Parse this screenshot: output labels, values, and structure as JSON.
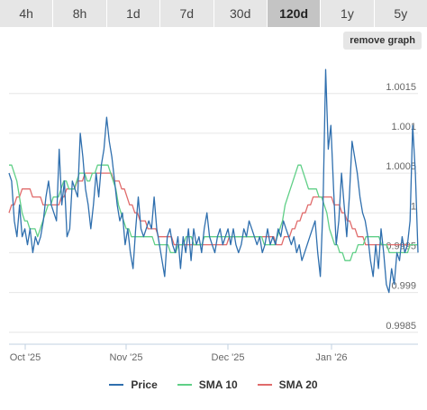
{
  "tabs": [
    {
      "label": "4h",
      "active": false
    },
    {
      "label": "8h",
      "active": false
    },
    {
      "label": "1d",
      "active": false
    },
    {
      "label": "7d",
      "active": false
    },
    {
      "label": "30d",
      "active": false
    },
    {
      "label": "120d",
      "active": true
    },
    {
      "label": "1y",
      "active": false
    },
    {
      "label": "5y",
      "active": false
    }
  ],
  "remove_graph_label": "remove graph",
  "colors": {
    "price": "#2f6fae",
    "sma10": "#5fcf86",
    "sma20": "#e06b6b",
    "grid": "#e6e6e6",
    "axis": "#c0d0e0"
  },
  "chart_data": {
    "type": "line",
    "title": "",
    "xlabel": "",
    "ylabel": "",
    "x_ticks": [
      "Oct '25",
      "Nov '25",
      "Dec '25",
      "Jan '26"
    ],
    "y_ticks": [
      "1.0015",
      "1.001",
      "1.0005",
      "1",
      "0.9995",
      "0.999",
      "0.9985"
    ],
    "ylim": [
      0.99835,
      1.00195
    ],
    "y_axis_position": "right",
    "grid": true,
    "legend_position": "bottom",
    "series": [
      {
        "name": "Price",
        "values": [
          1.0005,
          1.0004,
          0.9999,
          0.9997,
          1.0001,
          0.9997,
          0.9998,
          0.9996,
          0.9998,
          0.9995,
          0.9997,
          0.9996,
          0.9997,
          0.9999,
          1.0002,
          1.0004,
          1.0001,
          1.0,
          0.9999,
          1.0008,
          1.0001,
          1.0004,
          0.9997,
          0.9998,
          1.0004,
          1.0003,
          1.0002,
          1.001,
          1.0007,
          1.0003,
          1.0001,
          0.9998,
          1.0001,
          1.0005,
          1.0002,
          1.0006,
          1.0008,
          1.0012,
          1.0009,
          1.0007,
          1.0004,
          1.0001,
          0.9999,
          1.0,
          0.9996,
          0.9998,
          0.9995,
          0.9993,
          0.9998,
          1.0002,
          0.9998,
          0.9997,
          0.9998,
          0.9999,
          0.9998,
          1.0002,
          0.9998,
          0.9996,
          0.9994,
          0.9992,
          0.9997,
          0.9998,
          0.9996,
          0.9995,
          0.9997,
          0.9993,
          0.9997,
          0.9995,
          0.9998,
          0.9994,
          0.9998,
          0.9996,
          0.9997,
          0.9995,
          0.9998,
          1.0,
          0.9997,
          0.9996,
          0.9995,
          0.9997,
          0.9998,
          0.9996,
          0.9997,
          0.9998,
          0.9996,
          0.9998,
          0.9996,
          0.9995,
          0.9996,
          0.9998,
          0.9997,
          0.9999,
          0.9998,
          0.9997,
          0.9996,
          0.9997,
          0.9995,
          0.9996,
          0.9998,
          0.9996,
          0.9997,
          0.9996,
          0.9998,
          0.9997,
          0.9999,
          0.9998,
          0.9997,
          0.9996,
          0.9997,
          0.9995,
          0.9996,
          0.9994,
          0.9995,
          0.9996,
          0.9997,
          0.9998,
          0.9999,
          0.9995,
          0.9992,
          1.0001,
          1.0018,
          1.0008,
          1.0011,
          1.0003,
          0.9996,
          0.9999,
          1.0005,
          1.0001,
          0.9997,
          1.0002,
          1.0009,
          1.0007,
          1.0005,
          1.0002,
          1.0,
          0.9999,
          0.9997,
          0.9994,
          0.9992,
          0.9996,
          0.9993,
          0.9998,
          0.9995,
          0.9991,
          0.999,
          0.9993,
          0.9991,
          0.9995,
          0.9994,
          0.9997,
          0.9995,
          0.9996,
          0.9999,
          1.0011,
          1.0005,
          0.9995
        ]
      },
      {
        "name": "SMA 10",
        "values": [
          1.0006,
          1.0006,
          1.0005,
          1.0004,
          1.0002,
          1.0,
          0.9999,
          0.9999,
          0.9998,
          0.9998,
          0.9998,
          0.9997,
          0.9998,
          0.9999,
          1.0,
          1.0001,
          1.0001,
          1.0002,
          1.0002,
          1.0002,
          1.0003,
          1.0004,
          1.0004,
          1.0003,
          1.0003,
          1.0003,
          1.0004,
          1.0005,
          1.0005,
          1.0005,
          1.0004,
          1.0004,
          1.0005,
          1.0005,
          1.0006,
          1.0006,
          1.0006,
          1.0006,
          1.0006,
          1.0005,
          1.0004,
          1.0003,
          1.0001,
          1.0,
          0.9999,
          0.9998,
          0.9998,
          0.9997,
          0.9997,
          0.9997,
          0.9997,
          0.9997,
          0.9997,
          0.9997,
          0.9997,
          0.9997,
          0.9996,
          0.9996,
          0.9996,
          0.9996,
          0.9996,
          0.9996,
          0.9995,
          0.9995,
          0.9995,
          0.9996,
          0.9996,
          0.9996,
          0.9997,
          0.9997,
          0.9997,
          0.9996,
          0.9996,
          0.9996,
          0.9996,
          0.9997,
          0.9997,
          0.9997,
          0.9997,
          0.9997,
          0.9997,
          0.9997,
          0.9997,
          0.9997,
          0.9997,
          0.9997,
          0.9997,
          0.9997,
          0.9997,
          0.9997,
          0.9997,
          0.9997,
          0.9997,
          0.9997,
          0.9997,
          0.9997,
          0.9997,
          0.9997,
          0.9996,
          0.9996,
          0.9996,
          0.9996,
          0.9996,
          0.9997,
          0.9998,
          0.9999,
          1.0001,
          1.0002,
          1.0003,
          1.0004,
          1.0005,
          1.0006,
          1.0006,
          1.0005,
          1.0004,
          1.0003,
          1.0003,
          1.0003,
          1.0003,
          1.0002,
          1.0002,
          1.0001,
          1.0,
          0.9998,
          0.9997,
          0.9996,
          0.9996,
          0.9995,
          0.9995,
          0.9994,
          0.9994,
          0.9994,
          0.9995,
          0.9995,
          0.9996,
          0.9996,
          0.9996,
          0.9997,
          0.9997,
          0.9997,
          0.9997,
          0.9997,
          0.9997,
          0.9996,
          0.9996,
          0.9996,
          0.9995,
          0.9995,
          0.9995,
          0.9995,
          0.9995,
          0.9995,
          0.9995,
          0.9995,
          0.9996,
          0.9996,
          0.9996,
          0.9996
        ]
      },
      {
        "name": "SMA 20",
        "values": [
          1.0,
          1.0001,
          1.0001,
          1.0002,
          1.0002,
          1.0003,
          1.0003,
          1.0003,
          1.0003,
          1.0002,
          1.0002,
          1.0002,
          1.0002,
          1.0001,
          1.0001,
          1.0001,
          1.0001,
          1.0001,
          1.0001,
          1.0001,
          1.0002,
          1.0002,
          1.0003,
          1.0003,
          1.0003,
          1.0003,
          1.0004,
          1.0004,
          1.0004,
          1.0005,
          1.0005,
          1.0005,
          1.0005,
          1.0005,
          1.0005,
          1.0005,
          1.0005,
          1.0005,
          1.0005,
          1.0005,
          1.0004,
          1.0004,
          1.0004,
          1.0003,
          1.0003,
          1.0002,
          1.0001,
          1.0001,
          1.0,
          1.0,
          0.9999,
          0.9999,
          0.9999,
          0.9998,
          0.9998,
          0.9998,
          0.9998,
          0.9997,
          0.9997,
          0.9997,
          0.9997,
          0.9997,
          0.9997,
          0.9996,
          0.9996,
          0.9996,
          0.9996,
          0.9996,
          0.9996,
          0.9996,
          0.9996,
          0.9996,
          0.9996,
          0.9996,
          0.9996,
          0.9996,
          0.9996,
          0.9996,
          0.9996,
          0.9996,
          0.9996,
          0.9996,
          0.9996,
          0.9996,
          0.9997,
          0.9997,
          0.9997,
          0.9997,
          0.9997,
          0.9997,
          0.9997,
          0.9997,
          0.9997,
          0.9997,
          0.9997,
          0.9997,
          0.9997,
          0.9997,
          0.9997,
          0.9997,
          0.9997,
          0.9997,
          0.9996,
          0.9996,
          0.9996,
          0.9997,
          0.9997,
          0.9997,
          0.9998,
          0.9998,
          0.9999,
          0.9999,
          1.0,
          1.0,
          1.0001,
          1.0001,
          1.0002,
          1.0002,
          1.0002,
          1.0002,
          1.0002,
          1.0002,
          1.0002,
          1.0002,
          1.0001,
          1.0001,
          1.0001,
          1.0,
          1.0,
          0.9999,
          0.9999,
          0.9998,
          0.9998,
          0.9997,
          0.9997,
          0.9997,
          0.9996,
          0.9996,
          0.9996,
          0.9996,
          0.9996,
          0.9996,
          0.9996,
          0.9996,
          0.9996,
          0.9996,
          0.9996,
          0.9996,
          0.9996,
          0.9996,
          0.9996,
          0.9996,
          0.9996,
          0.9996,
          0.9996,
          0.9996,
          0.9996
        ]
      }
    ]
  }
}
